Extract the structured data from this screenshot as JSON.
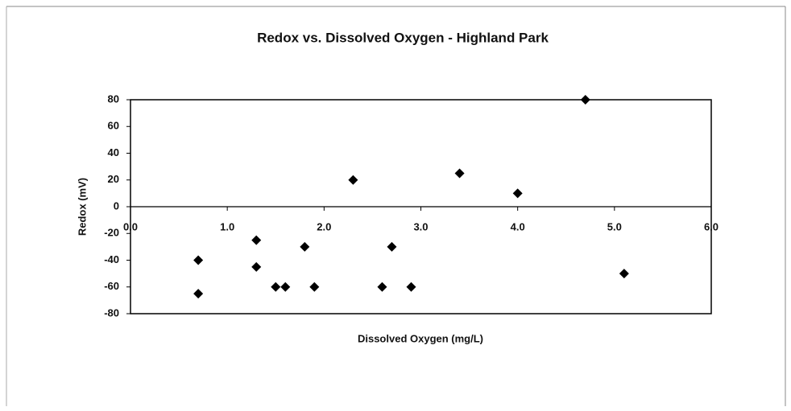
{
  "chart_data": {
    "type": "scatter",
    "title": "Redox vs. Dissolved Oxygen - Highland Park",
    "xlabel": "Dissolved Oxygen (mg/L)",
    "ylabel": "Redox (mV)",
    "series": [
      {
        "name": "Redox",
        "color": "#000000",
        "x": [
          0.7,
          0.7,
          1.3,
          1.3,
          1.5,
          1.6,
          1.8,
          1.9,
          2.3,
          2.6,
          2.7,
          2.9,
          3.4,
          4.0,
          4.7,
          5.1
        ],
        "values": [
          -40,
          -65,
          -25,
          -45,
          -60,
          -60,
          -30,
          -60,
          20,
          -60,
          -30,
          -60,
          25,
          10,
          80,
          -50
        ]
      }
    ],
    "xlim": [
      0,
      6
    ],
    "xticks": [
      {
        "value": 0,
        "label": "0.0"
      },
      {
        "value": 1,
        "label": "1.0"
      },
      {
        "value": 2,
        "label": "2.0"
      },
      {
        "value": 3,
        "label": "3.0"
      },
      {
        "value": 4,
        "label": "4.0"
      },
      {
        "value": 5,
        "label": "5.0"
      },
      {
        "value": 6,
        "label": "6.0"
      }
    ],
    "ylim": [
      -80,
      80
    ],
    "yticks": [
      -80,
      -60,
      -40,
      -20,
      0,
      20,
      40,
      60,
      80
    ]
  }
}
